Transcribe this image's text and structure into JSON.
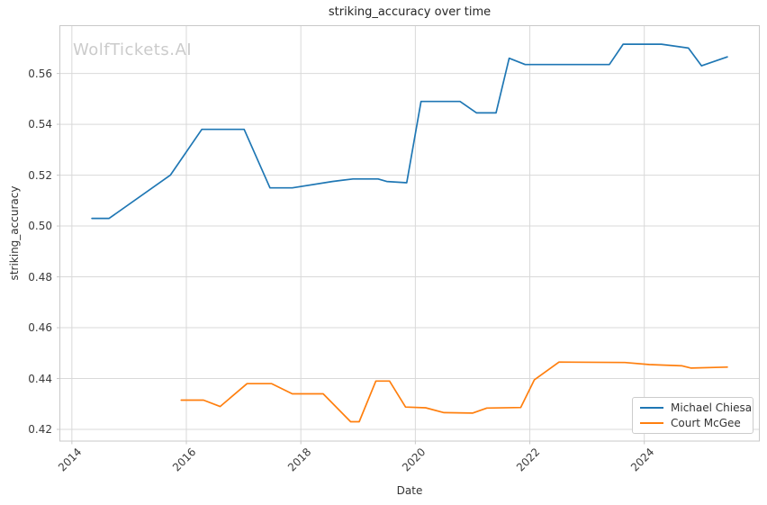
{
  "chart_data": {
    "type": "line",
    "title": "striking_accuracy over time",
    "xlabel": "Date",
    "ylabel": "striking_accuracy",
    "watermark": "WolfTickets.AI",
    "grid": true,
    "legend_position": "lower right",
    "xlim": [
      2013.79,
      2026.01
    ],
    "ylim": [
      0.4154,
      0.5788
    ],
    "xticks": [
      2014,
      2016,
      2018,
      2020,
      2022,
      2024
    ],
    "xtick_labels": [
      "2014",
      "2016",
      "2018",
      "2020",
      "2022",
      "2024"
    ],
    "yticks": [
      0.42,
      0.44,
      0.46,
      0.48,
      0.5,
      0.52,
      0.54,
      0.56
    ],
    "ytick_labels": [
      "0.42",
      "0.44",
      "0.46",
      "0.48",
      "0.50",
      "0.52",
      "0.54",
      "0.56"
    ],
    "series": [
      {
        "name": "Michael Chiesa",
        "color": "#1f77b4",
        "x": [
          2014.35,
          2014.65,
          2015.72,
          2016.27,
          2017.01,
          2017.46,
          2017.85,
          2018.55,
          2018.91,
          2019.35,
          2019.5,
          2019.85,
          2020.1,
          2020.78,
          2021.07,
          2021.41,
          2021.64,
          2021.92,
          2023.39,
          2023.63,
          2024.3,
          2024.77,
          2025.0,
          2025.45
        ],
        "y": [
          0.503,
          0.503,
          0.52,
          0.538,
          0.538,
          0.515,
          0.515,
          0.5175,
          0.5185,
          0.5185,
          0.5175,
          0.517,
          0.549,
          0.549,
          0.5445,
          0.5445,
          0.566,
          0.5635,
          0.5635,
          0.5715,
          0.5715,
          0.57,
          0.563,
          0.5665
        ]
      },
      {
        "name": "Court McGee",
        "color": "#ff7f0e",
        "x": [
          2015.91,
          2016.3,
          2016.59,
          2017.06,
          2017.49,
          2017.85,
          2018.39,
          2018.87,
          2019.02,
          2019.31,
          2019.55,
          2019.83,
          2020.18,
          2020.5,
          2021.0,
          2021.25,
          2021.84,
          2022.08,
          2022.51,
          2023.66,
          2024.09,
          2024.66,
          2024.82,
          2025.45
        ],
        "y": [
          0.4315,
          0.4315,
          0.429,
          0.438,
          0.438,
          0.434,
          0.434,
          0.423,
          0.423,
          0.439,
          0.439,
          0.4288,
          0.4285,
          0.4266,
          0.4264,
          0.4284,
          0.4286,
          0.4395,
          0.4465,
          0.4463,
          0.4455,
          0.445,
          0.4441,
          0.4445
        ]
      }
    ]
  },
  "colors": {
    "background": "#ffffff",
    "grid": "#d9d9d9",
    "spine": "#c9c9c9",
    "text": "#333333",
    "watermark": "#cbcbcb",
    "series_blue": "#1f77b4",
    "series_orange": "#ff7f0e"
  }
}
